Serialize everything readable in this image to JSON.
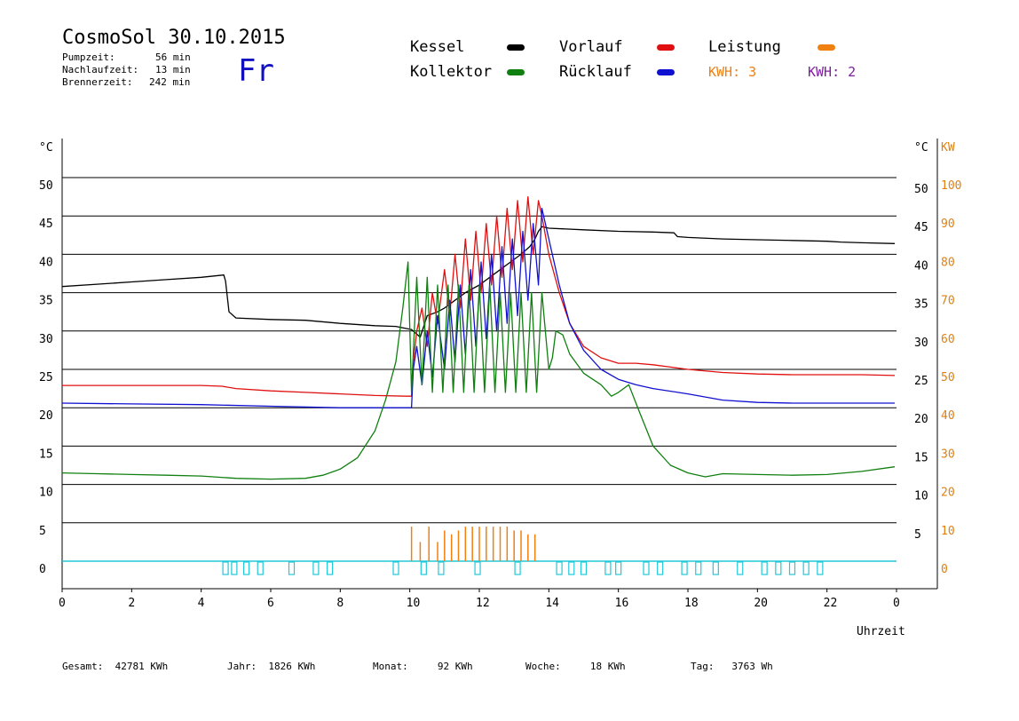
{
  "header": {
    "title": "CosmoSol 30.10.2015",
    "day": "Fr",
    "stats": [
      {
        "label": "Pumpzeit:",
        "value": "56 min"
      },
      {
        "label": "Nachlaufzeit:",
        "value": "13 min"
      },
      {
        "label": "Brennerzeit:",
        "value": "242 min"
      }
    ]
  },
  "legend": {
    "kessel": {
      "label": "Kessel",
      "color": "#000000"
    },
    "kollektor": {
      "label": "Kollektor",
      "color": "#108010"
    },
    "vorlauf": {
      "label": "Vorlauf",
      "color": "#e01010"
    },
    "ruecklauf": {
      "label": "Rücklauf",
      "color": "#1010d0"
    },
    "leistung": {
      "label": "Leistung",
      "color": "#f08010"
    },
    "kwh1": {
      "text": "KWH: 3",
      "color": "#f08010"
    },
    "kwh2": {
      "text": "KWH: 2",
      "color": "#8020a0"
    }
  },
  "footer": {
    "gesamt": "Gesamt:  42781 KWh",
    "jahr": "Jahr:  1826 KWh",
    "monat": "Monat:     92 KWh",
    "woche": "Woche:     18 KWh",
    "tag": "Tag:   3763 Wh"
  },
  "chart_data": {
    "type": "line",
    "xlabel": "Uhrzeit",
    "ylabel_left": "°C",
    "ylabel_right": "°C",
    "ylabel_right2": "KW",
    "xlim": [
      0,
      24
    ],
    "ylim": [
      -3.5,
      56
    ],
    "x_ticks": [
      "0",
      "2",
      "4",
      "6",
      "8",
      "10",
      "12",
      "14",
      "16",
      "18",
      "20",
      "22",
      "0"
    ],
    "y_ticks_left": [
      0,
      5,
      10,
      15,
      20,
      25,
      30,
      35,
      40,
      45,
      50
    ],
    "y_ticks_right": [
      5,
      10,
      15,
      20,
      25,
      30,
      35,
      40,
      45,
      50
    ],
    "y_ticks_kw": [
      0,
      10,
      20,
      30,
      40,
      50,
      60,
      70,
      80,
      90,
      100
    ],
    "grid_y": [
      5,
      10,
      15,
      20,
      25,
      30,
      35,
      40,
      45,
      50
    ],
    "axis_line_y": 0,
    "series": [
      {
        "name": "Kessel",
        "color": "#000000",
        "x": [
          0,
          1,
          2,
          3,
          4,
          4.65,
          4.7,
          4.8,
          5,
          6,
          7,
          8,
          9,
          9.6,
          10.05,
          10.3,
          10.5,
          10.8,
          11,
          11.3,
          11.6,
          12,
          12.3,
          12.6,
          12.9,
          13.2,
          13.45,
          13.6,
          13.7,
          13.8,
          14,
          15,
          16,
          17,
          17.6,
          17.7,
          18,
          19,
          20,
          21,
          22,
          22.4,
          23,
          23.95
        ],
        "y": [
          35.8,
          36.1,
          36.4,
          36.7,
          37.0,
          37.3,
          36.5,
          32.5,
          31.7,
          31.5,
          31.4,
          31.0,
          30.7,
          30.6,
          30.2,
          29.2,
          32.0,
          32.5,
          33.0,
          34.0,
          35.0,
          36.0,
          37.0,
          38.0,
          39.0,
          40.0,
          41.0,
          42.0,
          43.0,
          43.6,
          43.4,
          43.2,
          43.0,
          42.9,
          42.8,
          42.3,
          42.2,
          42.0,
          41.9,
          41.8,
          41.7,
          41.6,
          41.5,
          41.4
        ]
      },
      {
        "name": "Vorlauf",
        "color": "#e01010",
        "x": [
          0,
          2,
          4,
          4.6,
          5,
          6,
          7,
          8,
          9,
          9.9,
          10.05,
          10.1,
          10.2,
          10.35,
          10.5,
          10.65,
          10.8,
          11.0,
          11.15,
          11.3,
          11.45,
          11.6,
          11.75,
          11.9,
          12.05,
          12.2,
          12.35,
          12.5,
          12.65,
          12.8,
          12.95,
          13.1,
          13.25,
          13.4,
          13.55,
          13.7,
          13.8,
          14,
          14.3,
          14.6,
          15,
          15.5,
          16,
          16.5,
          17,
          17.5,
          18,
          19,
          20,
          21,
          22,
          23,
          23.95
        ],
        "y": [
          22.9,
          22.9,
          22.9,
          22.8,
          22.5,
          22.2,
          22.0,
          21.8,
          21.6,
          21.5,
          21.5,
          26,
          30.0,
          33.0,
          28.0,
          35.0,
          31.0,
          38.0,
          32.0,
          40.0,
          33.0,
          42.0,
          34.0,
          43.0,
          35.0,
          44.0,
          36.0,
          45.0,
          37.0,
          46.0,
          38.0,
          47.0,
          39.0,
          47.5,
          40.0,
          47.0,
          45.0,
          40.0,
          35.0,
          31.0,
          28.0,
          26.5,
          25.8,
          25.8,
          25.6,
          25.3,
          25.0,
          24.6,
          24.4,
          24.3,
          24.3,
          24.3,
          24.2
        ]
      },
      {
        "name": "Rücklauf",
        "color": "#1010d0",
        "x": [
          0,
          2,
          4,
          6,
          8,
          9.9,
          10.05,
          10.1,
          10.2,
          10.35,
          10.5,
          10.65,
          10.8,
          11.0,
          11.15,
          11.3,
          11.45,
          11.6,
          11.75,
          11.9,
          12.05,
          12.2,
          12.35,
          12.5,
          12.65,
          12.8,
          12.95,
          13.1,
          13.25,
          13.4,
          13.55,
          13.7,
          13.8,
          14,
          14.3,
          14.6,
          15,
          15.5,
          16,
          16.5,
          17,
          18,
          19,
          20,
          21,
          22,
          23,
          23.95
        ],
        "y": [
          20.6,
          20.5,
          20.4,
          20.2,
          20.0,
          20.0,
          20.0,
          25,
          28.0,
          23.0,
          30.0,
          24.0,
          32.0,
          25.0,
          34.0,
          26.0,
          36.0,
          27.0,
          38.0,
          28.0,
          39.0,
          29.0,
          40.0,
          30.0,
          41.0,
          31.0,
          42.0,
          32.0,
          43.0,
          34.0,
          44.0,
          36.0,
          46.0,
          42.0,
          36.0,
          31.0,
          27.5,
          25.0,
          23.7,
          23.0,
          22.5,
          21.8,
          21.0,
          20.7,
          20.6,
          20.6,
          20.6,
          20.6
        ]
      },
      {
        "name": "Kollektor",
        "color": "#108010",
        "x": [
          0,
          1,
          2,
          3,
          4,
          5,
          6,
          7,
          7.5,
          8,
          8.5,
          9,
          9.3,
          9.6,
          9.8,
          9.95,
          10.05,
          10.2,
          10.35,
          10.5,
          10.65,
          10.8,
          10.95,
          11.1,
          11.25,
          11.4,
          11.55,
          11.7,
          11.85,
          12.0,
          12.15,
          12.3,
          12.45,
          12.6,
          12.75,
          12.9,
          13.05,
          13.2,
          13.35,
          13.5,
          13.65,
          13.8,
          14.0,
          14.1,
          14.2,
          14.4,
          14.6,
          15.0,
          15.5,
          15.8,
          16.0,
          16.3,
          16.6,
          17,
          17.5,
          18,
          18.5,
          19,
          20,
          21,
          22,
          23,
          23.95
        ],
        "y": [
          11.5,
          11.4,
          11.3,
          11.2,
          11.1,
          10.8,
          10.7,
          10.8,
          11.2,
          12.0,
          13.5,
          17.0,
          21.0,
          26.0,
          33.0,
          39.0,
          22.0,
          37.0,
          23.0,
          37.0,
          22.0,
          36.0,
          22.0,
          36.0,
          22.0,
          36.0,
          22.0,
          36.0,
          22.0,
          36.0,
          22.0,
          36.0,
          22.0,
          35.0,
          22.0,
          35.0,
          22.0,
          35.0,
          22.0,
          35.0,
          22.0,
          35.0,
          25.0,
          26.5,
          30.0,
          29.5,
          27.0,
          24.5,
          23.0,
          21.5,
          22.0,
          23.0,
          19.5,
          15.0,
          12.5,
          11.5,
          11.0,
          11.4,
          11.3,
          11.2,
          11.3,
          11.7,
          12.3
        ]
      }
    ],
    "leistung_spikes": {
      "color": "#f08010",
      "x": [
        10.05,
        10.3,
        10.55,
        10.8,
        11.0,
        11.2,
        11.4,
        11.6,
        11.8,
        12.0,
        12.2,
        12.4,
        12.6,
        12.8,
        13.0,
        13.2,
        13.4,
        13.6
      ],
      "y": [
        4.5,
        2.5,
        4.5,
        2.5,
        4.0,
        3.5,
        4.0,
        4.5,
        4.5,
        4.5,
        4.5,
        4.5,
        4.5,
        4.5,
        4.0,
        4.0,
        3.5,
        3.5
      ]
    },
    "pump_markers": {
      "color": "#20c8d8",
      "x": [
        4.7,
        4.95,
        5.3,
        5.7,
        6.6,
        7.3,
        7.7,
        9.6,
        10.4,
        10.9,
        11.95,
        13.1,
        14.3,
        14.65,
        15.0,
        15.7,
        16.0,
        16.8,
        17.2,
        17.9,
        18.3,
        18.8,
        19.5,
        20.2,
        20.6,
        21.0,
        21.4,
        21.8
      ]
    }
  }
}
